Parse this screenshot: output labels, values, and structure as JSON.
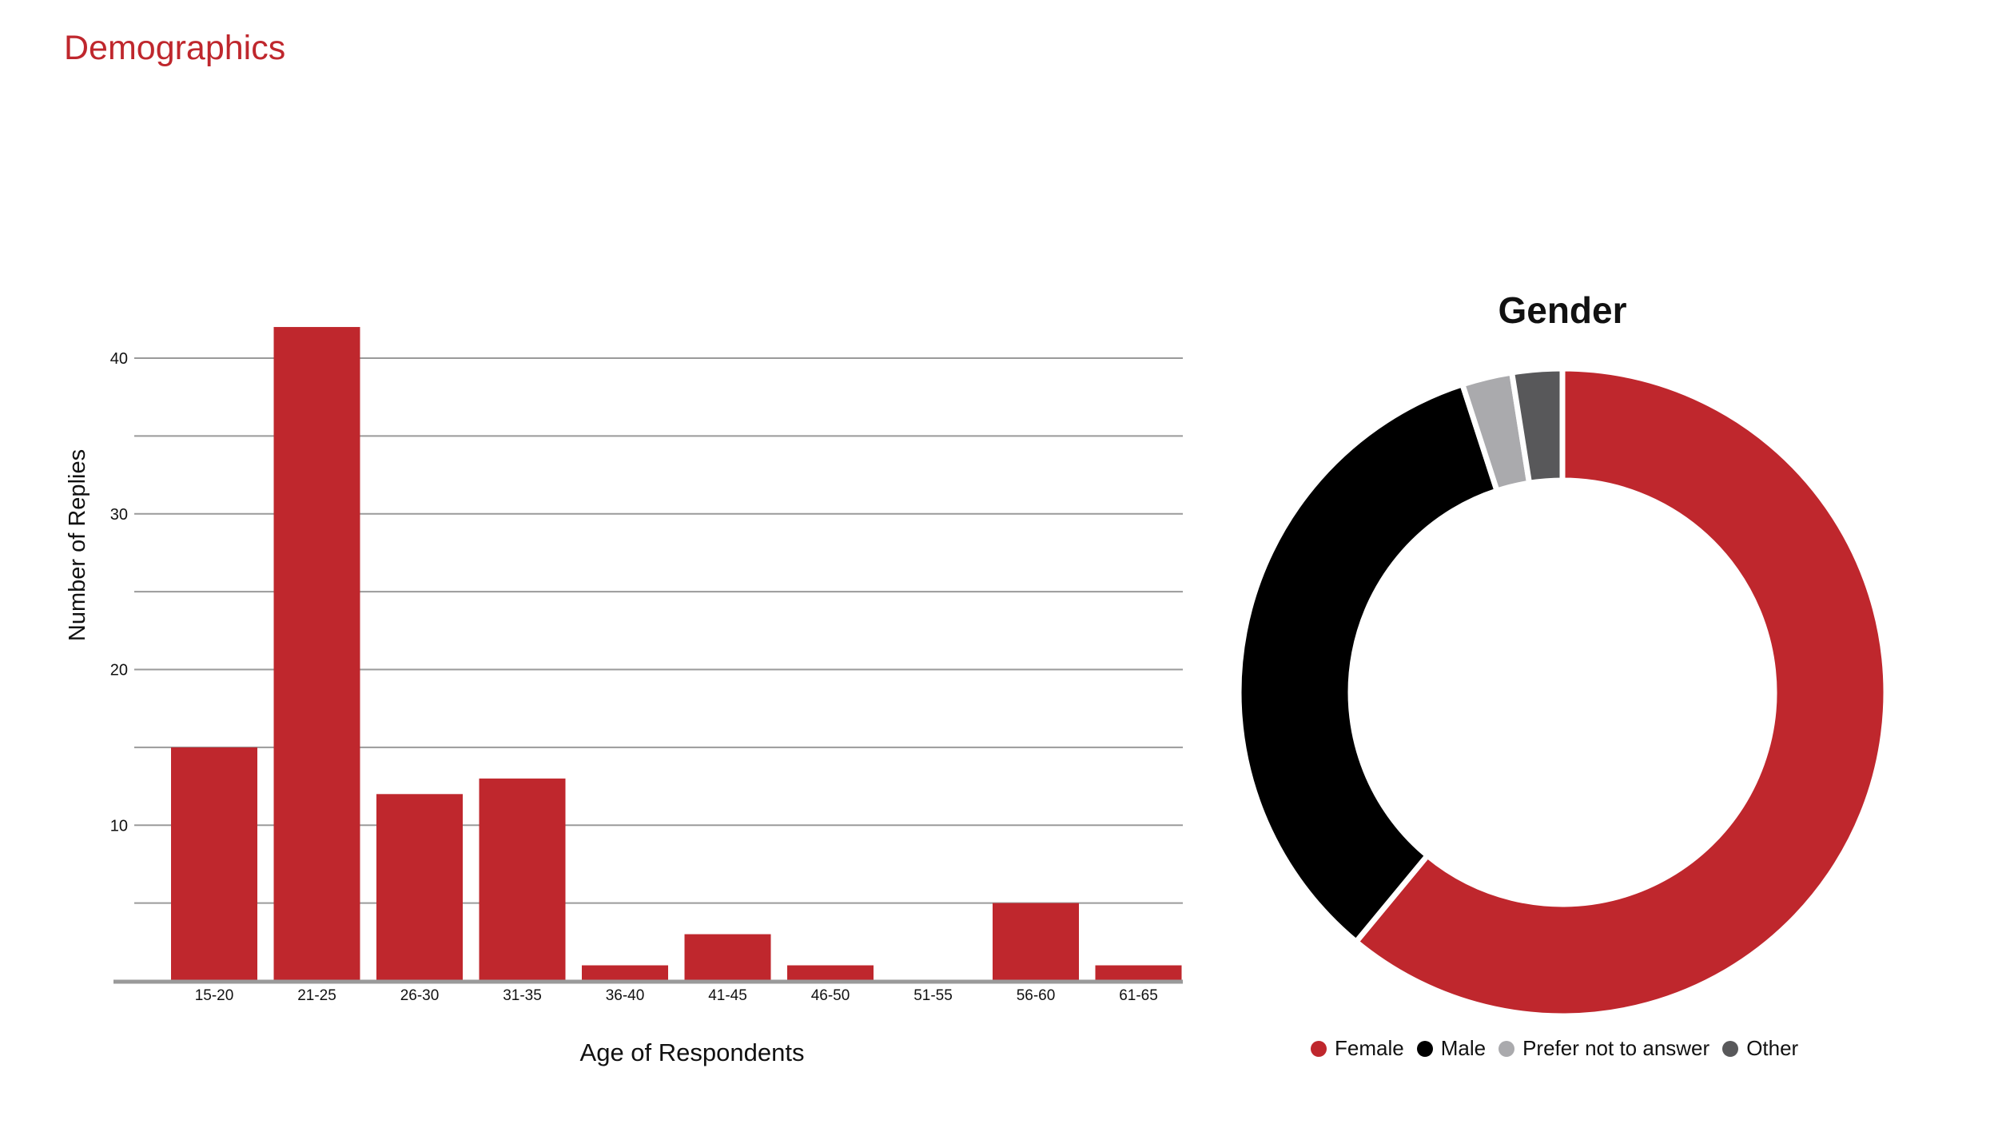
{
  "page": {
    "title": "Demographics"
  },
  "chart_data": [
    {
      "type": "bar",
      "title": "",
      "xlabel": "Age of Respondents",
      "ylabel": "Number of Replies",
      "categories": [
        "15-20",
        "21-25",
        "26-30",
        "31-35",
        "36-40",
        "41-45",
        "46-50",
        "51-55",
        "56-60",
        "61-65"
      ],
      "values": [
        15,
        42,
        12,
        13,
        1,
        3,
        1,
        0,
        5,
        1
      ],
      "ylim": [
        0,
        40
      ],
      "yticks": [
        10,
        20,
        30,
        40
      ],
      "grid": true,
      "color": "#bf272d"
    },
    {
      "type": "pie",
      "style": "donut",
      "title": "Gender",
      "labels": [
        "Female",
        "Male",
        "Prefer not to answer",
        "Other"
      ],
      "values": [
        61,
        34,
        2.5,
        2.5
      ],
      "colors": [
        "#bf272d",
        "#000000",
        "#aaaaad",
        "#58585a"
      ],
      "legend_position": "bottom"
    }
  ]
}
